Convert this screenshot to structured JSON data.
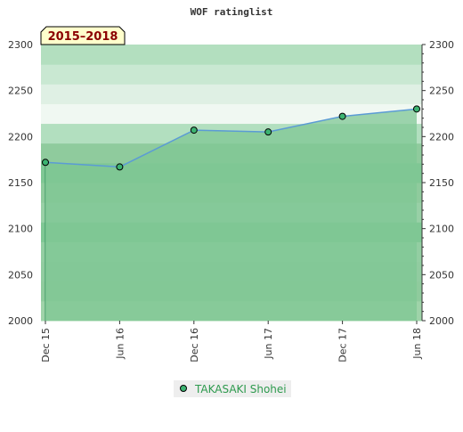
{
  "chart_data": {
    "type": "area",
    "title": "WOF ratinglist",
    "period_label": "2015–2018",
    "xlabel": "",
    "ylabel": "",
    "categories": [
      "Dec 15",
      "Jun 16",
      "Dec 16",
      "Jun 17",
      "Dec 17",
      "Jun 18"
    ],
    "ylim": [
      2000,
      2300
    ],
    "yticks": [
      2000,
      2050,
      2100,
      2150,
      2200,
      2250,
      2300
    ],
    "grid": false,
    "legend_position": "bottom",
    "series": [
      {
        "name": "TAKASAKI Shohei",
        "values": [
          2172,
          2167,
          2207,
          2205,
          2222,
          2230
        ]
      }
    ],
    "colors": {
      "line": "#5b9bd5",
      "marker_fill": "#3cb371",
      "area": "#7fc794",
      "legend_text": "#2e9a4e",
      "label_bg": "#ffffcc",
      "label_text": "#8b0000"
    }
  }
}
